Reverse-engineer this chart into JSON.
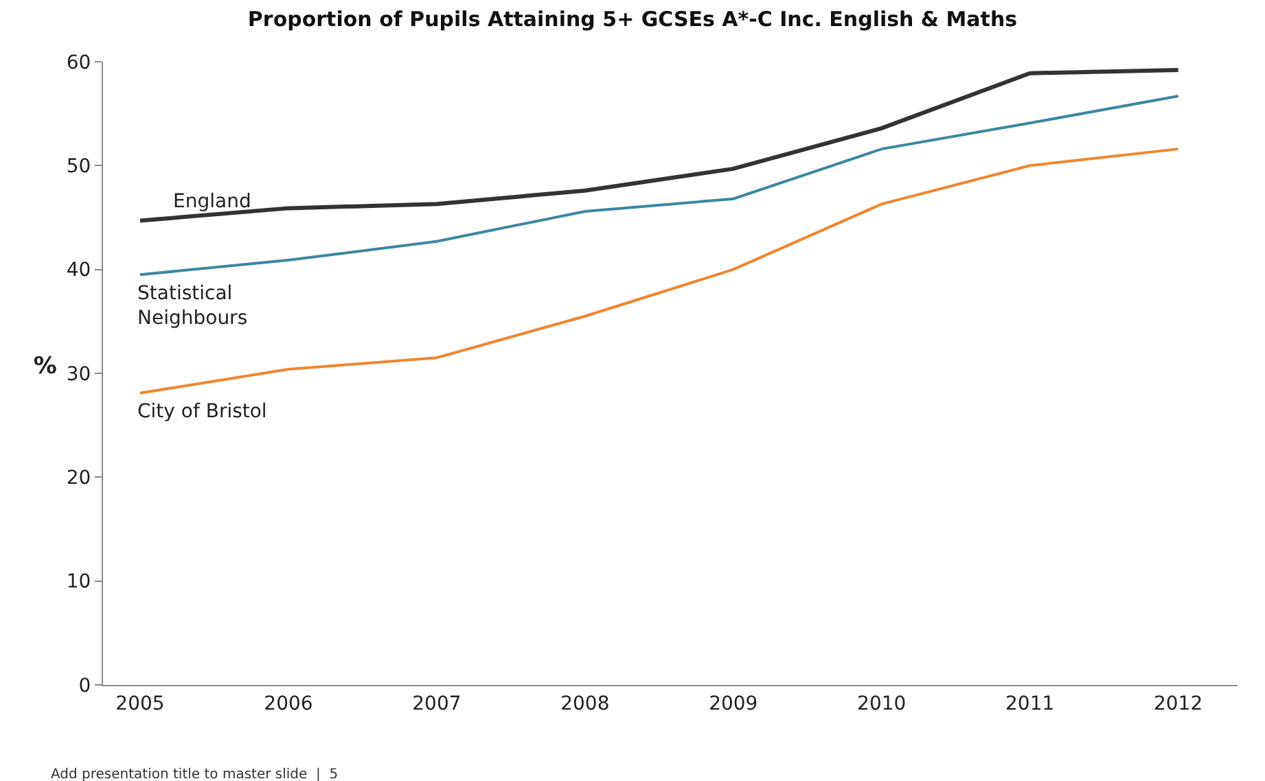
{
  "chart_data": {
    "type": "line",
    "title": "Proportion of Pupils Attaining 5+ GCSEs A*-C Inc. English & Maths",
    "ylabel": "%",
    "categories": [
      "2005",
      "2006",
      "2007",
      "2008",
      "2009",
      "2010",
      "2011",
      "2012"
    ],
    "series": [
      {
        "name": "England",
        "color": "#333333",
        "values": [
          44.7,
          45.9,
          46.3,
          47.6,
          49.7,
          53.6,
          58.9,
          59.2
        ]
      },
      {
        "name": "Statistical\nNeighbours",
        "color": "#3b87a3",
        "values": [
          39.5,
          40.9,
          42.7,
          45.6,
          46.8,
          51.6,
          54.1,
          56.7
        ]
      },
      {
        "name": "City of Bristol",
        "color": "#f0862e",
        "values": [
          28.1,
          30.4,
          31.5,
          35.5,
          40.0,
          46.3,
          50.0,
          51.6
        ]
      }
    ],
    "ylim": [
      0,
      60
    ],
    "yticks": [
      0,
      10,
      20,
      30,
      40,
      50,
      60
    ],
    "grid": false,
    "legend": false,
    "marker": "none",
    "line_style": "solid",
    "annotations": [
      "Add presentation title to master slide  |  5"
    ]
  }
}
